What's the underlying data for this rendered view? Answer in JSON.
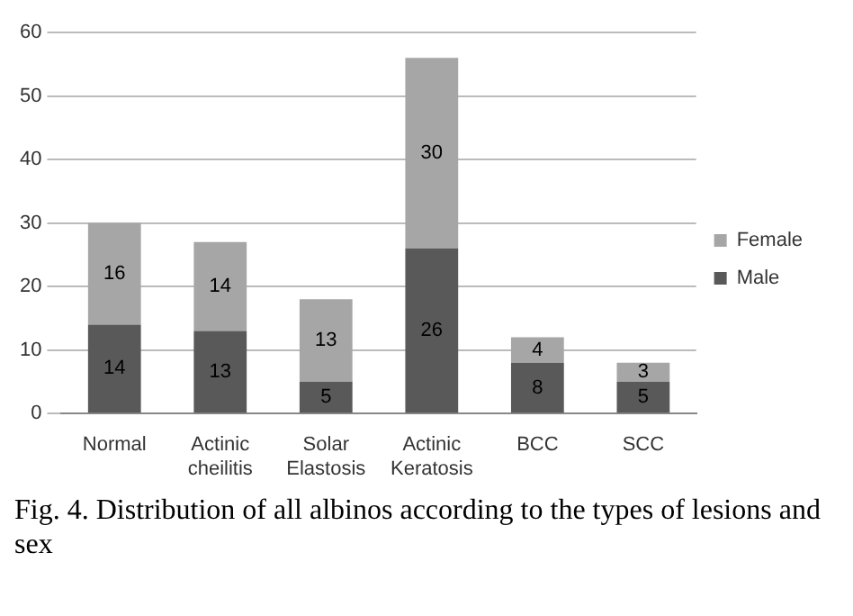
{
  "chart_data": {
    "type": "bar",
    "stacked": true,
    "categories": [
      "Normal",
      "Actinic cheilitis",
      "Solar Elastosis",
      "Actinic Keratosis",
      "BCC",
      "SCC"
    ],
    "series": [
      {
        "name": "Male",
        "color": "#595959",
        "values": [
          14,
          13,
          5,
          26,
          8,
          5
        ]
      },
      {
        "name": "Female",
        "color": "#a6a6a6",
        "values": [
          16,
          14,
          13,
          30,
          4,
          3
        ]
      }
    ],
    "ylim": [
      0,
      60
    ],
    "yticks": [
      0,
      10,
      20,
      30,
      40,
      50,
      60
    ],
    "grid": "y",
    "legend": "right",
    "data_labels": true,
    "annotations": [
      "Fig. 4. Distribution of all albinos according to the types of lesions and sex"
    ]
  }
}
